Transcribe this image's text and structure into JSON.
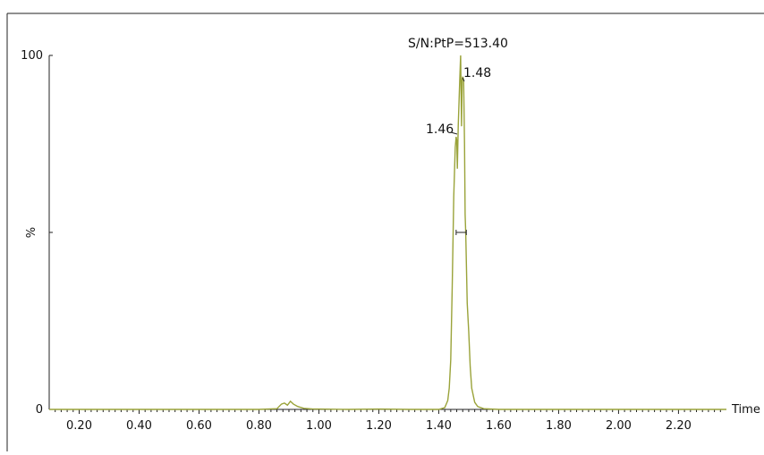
{
  "chart_data": {
    "type": "line",
    "xlabel": "Time",
    "ylabel": "%",
    "xlim": [
      0.1,
      2.36
    ],
    "ylim": [
      0,
      100
    ],
    "x_ticks": [
      "0.20",
      "0.40",
      "0.60",
      "0.80",
      "1.00",
      "1.20",
      "1.40",
      "1.60",
      "1.80",
      "2.00",
      "2.20"
    ],
    "y_ticks": [
      "0",
      "100"
    ],
    "y_mid_tick": "%",
    "line_color": "#9aa33a",
    "series": [
      {
        "x": [
          0.1,
          0.2,
          0.4,
          0.6,
          0.8,
          0.86,
          0.875,
          0.885,
          0.895,
          0.905,
          0.915,
          0.93,
          0.95,
          0.98,
          1.0,
          1.1,
          1.2,
          1.3,
          1.4,
          1.42,
          1.43,
          1.435,
          1.44,
          1.445,
          1.45,
          1.455,
          1.458,
          1.46,
          1.462,
          1.465,
          1.47,
          1.473,
          1.476,
          1.478,
          1.48,
          1.483,
          1.486,
          1.488,
          1.49,
          1.495,
          1.5,
          1.505,
          1.51,
          1.52,
          1.53,
          1.55,
          1.6,
          1.8,
          2.0,
          2.2,
          2.36
        ],
        "y": [
          0,
          0,
          0,
          0,
          0,
          0.2,
          1.5,
          1.8,
          1.2,
          2.3,
          1.5,
          0.8,
          0.3,
          0.1,
          0.1,
          0,
          0.1,
          0,
          0,
          0.5,
          2.5,
          6,
          14,
          35,
          60,
          74,
          77,
          76,
          68,
          80,
          93,
          100,
          80,
          93,
          94,
          93,
          75,
          55,
          50,
          30,
          22,
          12,
          6,
          2,
          0.8,
          0.2,
          0,
          0,
          0,
          0,
          0
        ]
      }
    ],
    "annotations": {
      "peak_label": "S/N:PtP=513.40",
      "peak_1": "1.46",
      "peak_2": "1.48"
    },
    "half_height_marker": {
      "x_start": 1.458,
      "x_end": 1.492,
      "y": 50
    }
  }
}
